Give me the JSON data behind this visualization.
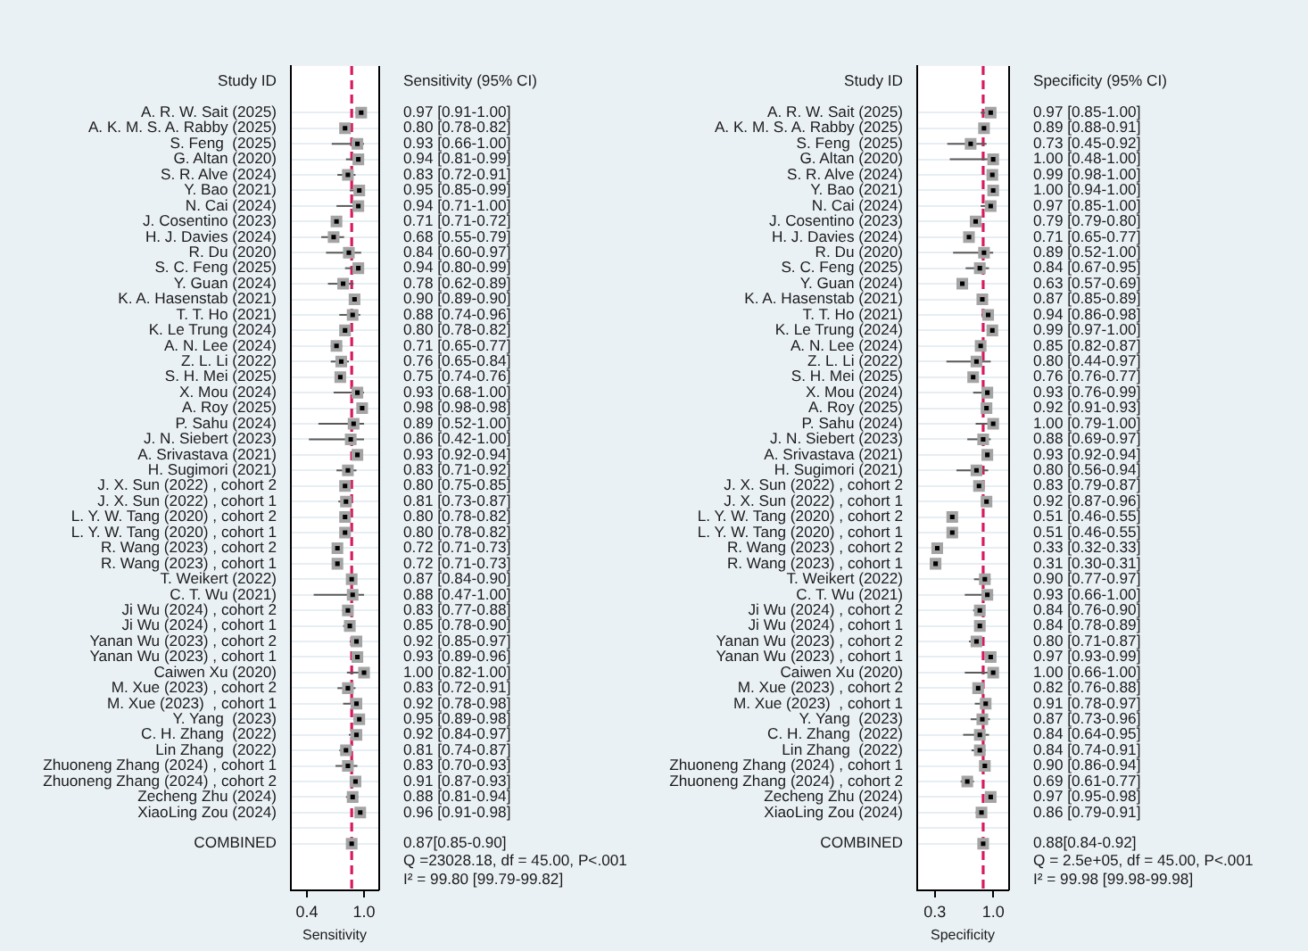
{
  "chart_data": [
    {
      "type": "scatter",
      "orientation": "horizontal",
      "ylabel": "Study ID",
      "xlabel": "Sensitivity",
      "marker": "square",
      "grid": "y",
      "legend": false,
      "categories": [
        "A. R. W. Sait (2025)",
        "A. K. M. S. A. Rabby (2025)",
        "S. Feng  (2025)",
        "G. Altan (2020)",
        "S. R. Alve (2024)",
        "Y. Bao (2021)",
        "N. Cai (2024)",
        "J. Cosentino (2023)",
        "H. J. Davies (2024)",
        "R. Du (2020)",
        "S. C. Feng (2025)",
        "Y. Guan (2024)",
        "K. A. Hasenstab (2021)",
        "T. T. Ho (2021)",
        "K. Le Trung (2024)",
        "A. N. Lee (2024)",
        "Z. L. Li (2022)",
        "S. H. Mei (2025)",
        "X. Mou (2024)",
        "A. Roy (2025)",
        "P. Sahu (2024)",
        "J. N. Siebert (2023)",
        "A. Srivastava (2021)",
        "H. Sugimori (2021)",
        "J. X. Sun (2022) , cohort 2",
        "J. X. Sun (2022) , cohort 1",
        "L. Y. W. Tang (2020) , cohort 2",
        "L. Y. W. Tang (2020) , cohort 1",
        "R. Wang (2023) , cohort 2",
        "R. Wang (2023) , cohort 1",
        "T. Weikert (2022)",
        "C. T. Wu (2021)",
        "Ji Wu (2024) , cohort 2",
        "Ji Wu (2024) , cohort 1",
        "Yanan Wu (2023) , cohort 2",
        "Yanan Wu (2023) , cohort 1",
        "Caiwen Xu (2020)",
        "M. Xue (2023) , cohort 2",
        "M. Xue (2023)  , cohort 1",
        "Y. Yang  (2023)",
        "C. H. Zhang  (2022)",
        "Lin Zhang  (2022)",
        "Zhuoneng Zhang (2024) , cohort 1",
        "Zhuoneng Zhang (2024) , cohort 2",
        "Zecheng Zhu (2024)",
        "XiaoLing Zou (2024)",
        null,
        "COMBINED"
      ],
      "series": [
        {
          "color": "#000000",
          "values": [
            0.97,
            0.8,
            0.93,
            0.94,
            0.83,
            0.95,
            0.94,
            0.71,
            0.68,
            0.84,
            0.94,
            0.78,
            0.9,
            0.88,
            0.8,
            0.71,
            0.76,
            0.75,
            0.93,
            0.98,
            0.89,
            0.86,
            0.93,
            0.83,
            0.8,
            0.81,
            0.8,
            0.8,
            0.72,
            0.72,
            0.87,
            0.88,
            0.83,
            0.85,
            0.92,
            0.93,
            1.0,
            0.83,
            0.92,
            0.95,
            0.92,
            0.81,
            0.83,
            0.91,
            0.88,
            0.96,
            null,
            0.87
          ],
          "errors": [
            [
              0.91,
              1.0
            ],
            [
              0.78,
              0.82
            ],
            [
              0.66,
              1.0
            ],
            [
              0.81,
              0.99
            ],
            [
              0.72,
              0.91
            ],
            [
              0.85,
              0.99
            ],
            [
              0.71,
              1.0
            ],
            null,
            [
              0.55,
              0.79
            ],
            [
              0.6,
              0.97
            ],
            [
              0.8,
              0.99
            ],
            [
              0.62,
              0.89
            ],
            null,
            [
              0.74,
              0.96
            ],
            [
              0.78,
              0.82
            ],
            [
              0.65,
              0.77
            ],
            [
              0.65,
              0.84
            ],
            [
              0.74,
              0.76
            ],
            [
              0.68,
              1.0
            ],
            null,
            [
              0.52,
              1.0
            ],
            [
              0.42,
              1.0
            ],
            [
              0.92,
              0.94
            ],
            [
              0.71,
              0.92
            ],
            [
              0.75,
              0.85
            ],
            [
              0.73,
              0.87
            ],
            [
              0.78,
              0.82
            ],
            [
              0.78,
              0.82
            ],
            [
              0.71,
              0.73
            ],
            [
              0.71,
              0.73
            ],
            [
              0.84,
              0.9
            ],
            [
              0.47,
              1.0
            ],
            [
              0.77,
              0.88
            ],
            [
              0.78,
              0.9
            ],
            [
              0.85,
              0.97
            ],
            [
              0.89,
              0.96
            ],
            [
              0.82,
              1.0
            ],
            [
              0.72,
              0.91
            ],
            [
              0.78,
              0.98
            ],
            [
              0.89,
              0.98
            ],
            [
              0.84,
              0.97
            ],
            [
              0.74,
              0.87
            ],
            [
              0.7,
              0.93
            ],
            [
              0.87,
              0.93
            ],
            [
              0.81,
              0.94
            ],
            [
              0.91,
              0.98
            ],
            null,
            [
              0.85,
              0.9
            ]
          ],
          "value_labels": [
            "0.97 [0.91-1.00]",
            "0.80 [0.78-0.82]",
            "0.93 [0.66-1.00]",
            "0.94 [0.81-0.99]",
            "0.83 [0.72-0.91]",
            "0.95 [0.85-0.99]",
            "0.94 [0.71-1.00]",
            "0.71 [0.71-0.72]",
            "0.68 [0.55-0.79]",
            "0.84 [0.60-0.97]",
            "0.94 [0.80-0.99]",
            "0.78 [0.62-0.89]",
            "0.90 [0.89-0.90]",
            "0.88 [0.74-0.96]",
            "0.80 [0.78-0.82]",
            "0.71 [0.65-0.77]",
            "0.76 [0.65-0.84]",
            "0.75 [0.74-0.76]",
            "0.93 [0.68-1.00]",
            "0.98 [0.98-0.98]",
            "0.89 [0.52-1.00]",
            "0.86 [0.42-1.00]",
            "0.93 [0.92-0.94]",
            "0.83 [0.71-0.92]",
            "0.80 [0.75-0.85]",
            "0.81 [0.73-0.87]",
            "0.80 [0.78-0.82]",
            "0.80 [0.78-0.82]",
            "0.72 [0.71-0.73]",
            "0.72 [0.71-0.73]",
            "0.87 [0.84-0.90]",
            "0.88 [0.47-1.00]",
            "0.83 [0.77-0.88]",
            "0.85 [0.78-0.90]",
            "0.92 [0.85-0.97]",
            "0.93 [0.89-0.96]",
            "1.00 [0.82-1.00]",
            "0.83 [0.72-0.91]",
            "0.92 [0.78-0.98]",
            "0.95 [0.89-0.98]",
            "0.92 [0.84-0.97]",
            "0.81 [0.74-0.87]",
            "0.83 [0.70-0.93]",
            "0.91 [0.87-0.93]",
            "0.88 [0.81-0.94]",
            "0.96 [0.91-0.98]",
            null,
            "0.87[0.85-0.90]"
          ]
        }
      ],
      "xlim": [
        0.23,
        1.15
      ],
      "xticks": [
        0.4,
        {
          "value": 1,
          "label": "1.0"
        }
      ],
      "ref_lines": [
        {
          "axis": "x",
          "value": 0.87,
          "color": "#d81b60",
          "line_style": "dashed"
        }
      ],
      "annotations": [
        "Sensitivity (95% CI)",
        "Q =23028.18, df = 45.00, P<.001",
        "I² = 99.80 [99.79-99.82]"
      ]
    },
    {
      "type": "scatter",
      "orientation": "horizontal",
      "ylabel": "Study ID",
      "xlabel": "Specificity",
      "marker": "square",
      "grid": "y",
      "legend": false,
      "categories": [
        "A. R. W. Sait (2025)",
        "A. K. M. S. A. Rabby (2025)",
        "S. Feng  (2025)",
        "G. Altan (2020)",
        "S. R. Alve (2024)",
        "Y. Bao (2021)",
        "N. Cai (2024)",
        "J. Cosentino (2023)",
        "H. J. Davies (2024)",
        "R. Du (2020)",
        "S. C. Feng (2025)",
        "Y. Guan (2024)",
        "K. A. Hasenstab (2021)",
        "T. T. Ho (2021)",
        "K. Le Trung (2024)",
        "A. N. Lee (2024)",
        "Z. L. Li (2022)",
        "S. H. Mei (2025)",
        "X. Mou (2024)",
        "A. Roy (2025)",
        "P. Sahu (2024)",
        "J. N. Siebert (2023)",
        "A. Srivastava (2021)",
        "H. Sugimori (2021)",
        "J. X. Sun (2022) , cohort 2",
        "J. X. Sun (2022) , cohort 1",
        "L. Y. W. Tang (2020) , cohort 2",
        "L. Y. W. Tang (2020) , cohort 1",
        "R. Wang (2023) , cohort 2",
        "R. Wang (2023) , cohort 1",
        "T. Weikert (2022)",
        "C. T. Wu (2021)",
        "Ji Wu (2024) , cohort 2",
        "Ji Wu (2024) , cohort 1",
        "Yanan Wu (2023) , cohort 2",
        "Yanan Wu (2023) , cohort 1",
        "Caiwen Xu (2020)",
        "M. Xue (2023) , cohort 2",
        "M. Xue (2023)  , cohort 1",
        "Y. Yang  (2023)",
        "C. H. Zhang  (2022)",
        "Lin Zhang  (2022)",
        "Zhuoneng Zhang (2024) , cohort 1",
        "Zhuoneng Zhang (2024) , cohort 2",
        "Zecheng Zhu (2024)",
        "XiaoLing Zou (2024)",
        null,
        "COMBINED"
      ],
      "series": [
        {
          "color": "#000000",
          "values": [
            0.97,
            0.89,
            0.73,
            1.0,
            0.99,
            1.0,
            0.97,
            0.79,
            0.71,
            0.89,
            0.84,
            0.63,
            0.87,
            0.94,
            0.99,
            0.85,
            0.8,
            0.76,
            0.93,
            0.92,
            1.0,
            0.88,
            0.93,
            0.8,
            0.83,
            0.92,
            0.51,
            0.51,
            0.33,
            0.31,
            0.9,
            0.93,
            0.84,
            0.84,
            0.8,
            0.97,
            1.0,
            0.82,
            0.91,
            0.87,
            0.84,
            0.84,
            0.9,
            0.69,
            0.97,
            0.86,
            null,
            0.88
          ],
          "errors": [
            [
              0.85,
              1.0
            ],
            [
              0.88,
              0.91
            ],
            [
              0.45,
              0.92
            ],
            [
              0.48,
              1.0
            ],
            [
              0.98,
              1.0
            ],
            [
              0.94,
              1.0
            ],
            [
              0.85,
              1.0
            ],
            null,
            [
              0.65,
              0.77
            ],
            [
              0.52,
              1.0
            ],
            [
              0.67,
              0.95
            ],
            [
              0.57,
              0.69
            ],
            [
              0.85,
              0.89
            ],
            [
              0.86,
              0.98
            ],
            [
              0.97,
              1.0
            ],
            [
              0.82,
              0.87
            ],
            [
              0.44,
              0.97
            ],
            null,
            [
              0.76,
              0.99
            ],
            [
              0.91,
              0.93
            ],
            [
              0.79,
              1.0
            ],
            [
              0.69,
              0.97
            ],
            [
              0.92,
              0.94
            ],
            [
              0.56,
              0.94
            ],
            [
              0.79,
              0.87
            ],
            [
              0.87,
              0.96
            ],
            [
              0.46,
              0.55
            ],
            [
              0.46,
              0.55
            ],
            null,
            null,
            [
              0.77,
              0.97
            ],
            [
              0.66,
              1.0
            ],
            [
              0.76,
              0.9
            ],
            [
              0.78,
              0.89
            ],
            [
              0.71,
              0.87
            ],
            [
              0.93,
              0.99
            ],
            [
              0.66,
              1.0
            ],
            [
              0.76,
              0.88
            ],
            [
              0.78,
              0.97
            ],
            [
              0.73,
              0.96
            ],
            [
              0.64,
              0.95
            ],
            [
              0.74,
              0.91
            ],
            [
              0.86,
              0.94
            ],
            [
              0.61,
              0.77
            ],
            [
              0.95,
              0.98
            ],
            [
              0.79,
              0.91
            ],
            null,
            [
              0.84,
              0.92
            ]
          ],
          "value_labels": [
            "0.97 [0.85-1.00]",
            "0.89 [0.88-0.91]",
            "0.73 [0.45-0.92]",
            "1.00 [0.48-1.00]",
            "0.99 [0.98-1.00]",
            "1.00 [0.94-1.00]",
            "0.97 [0.85-1.00]",
            "0.79 [0.79-0.80]",
            "0.71 [0.65-0.77]",
            "0.89 [0.52-1.00]",
            "0.84 [0.67-0.95]",
            "0.63 [0.57-0.69]",
            "0.87 [0.85-0.89]",
            "0.94 [0.86-0.98]",
            "0.99 [0.97-1.00]",
            "0.85 [0.82-0.87]",
            "0.80 [0.44-0.97]",
            "0.76 [0.76-0.77]",
            "0.93 [0.76-0.99]",
            "0.92 [0.91-0.93]",
            "1.00 [0.79-1.00]",
            "0.88 [0.69-0.97]",
            "0.93 [0.92-0.94]",
            "0.80 [0.56-0.94]",
            "0.83 [0.79-0.87]",
            "0.92 [0.87-0.96]",
            "0.51 [0.46-0.55]",
            "0.51 [0.46-0.55]",
            "0.33 [0.32-0.33]",
            "0.31 [0.30-0.31]",
            "0.90 [0.77-0.97]",
            "0.93 [0.66-1.00]",
            "0.84 [0.76-0.90]",
            "0.84 [0.78-0.89]",
            "0.80 [0.71-0.87]",
            "0.97 [0.93-0.99]",
            "1.00 [0.66-1.00]",
            "0.82 [0.76-0.88]",
            "0.91 [0.78-0.97]",
            "0.87 [0.73-0.96]",
            "0.84 [0.64-0.95]",
            "0.84 [0.74-0.91]",
            "0.90 [0.86-0.94]",
            "0.69 [0.61-0.77]",
            "0.97 [0.95-0.98]",
            "0.86 [0.79-0.91]",
            null,
            "0.88[0.84-0.92]"
          ]
        }
      ],
      "xlim": [
        0.09,
        1.18
      ],
      "xticks": [
        0.3,
        {
          "value": 1,
          "label": "1.0"
        }
      ],
      "ref_lines": [
        {
          "axis": "x",
          "value": 0.88,
          "color": "#d81b60",
          "line_style": "dashed"
        }
      ],
      "annotations": [
        "Specificity (95% CI)",
        "Q = 2.5e+05, df = 45.00, P<.001",
        "I² = 99.98 [99.98-99.98]"
      ]
    }
  ]
}
